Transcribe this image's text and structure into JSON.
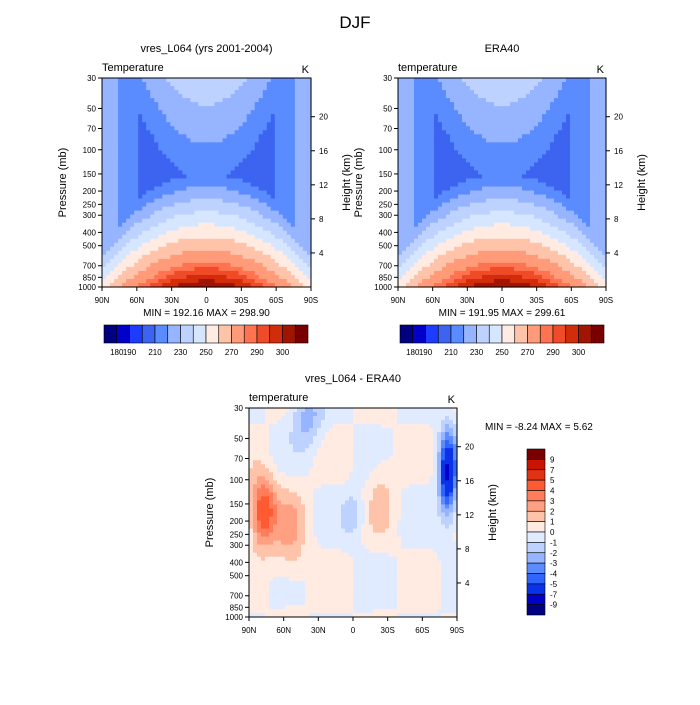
{
  "page": {
    "title": "DJF"
  },
  "chart_data": [
    {
      "type": "contour",
      "title": "vres_L064 (yrs 2001-2004)",
      "field_label": "Temperature",
      "units": "K",
      "xlabel": "",
      "ylabel": "Pressure (mb)",
      "ylabel_right": "Height (km)",
      "x_ticks": [
        "90N",
        "60N",
        "30N",
        "0",
        "30S",
        "60S",
        "90S"
      ],
      "y_ticks": [
        "30",
        "50",
        "70",
        "100",
        "150",
        "200",
        "250",
        "300",
        "400",
        "500",
        "700",
        "850",
        "1000"
      ],
      "y_ticks_values": [
        30,
        50,
        70,
        100,
        150,
        200,
        250,
        300,
        400,
        500,
        700,
        850,
        1000
      ],
      "height_ticks": [
        "4",
        "8",
        "12",
        "16",
        "20"
      ],
      "height_ticks_values": [
        4,
        8,
        12,
        16,
        20
      ],
      "min_max": "MIN = 192.16  MAX = 298.90",
      "colorbar": {
        "levels": [
          "180",
          "190",
          "210",
          "230",
          "250",
          "270",
          "290",
          "300"
        ],
        "colors": [
          "#000080",
          "#0000c8",
          "#1e3cff",
          "#3c64f0",
          "#5a8cff",
          "#96b4ff",
          "#bed2ff",
          "#d7e6ff",
          "#ffebe1",
          "#ffc3aa",
          "#ff9b78",
          "#ff7350",
          "#f04b28",
          "#d22d0a",
          "#a01400",
          "#780000"
        ]
      }
    },
    {
      "type": "contour",
      "title": "ERA40",
      "field_label": "temperature",
      "units": "K",
      "xlabel": "",
      "ylabel": "Pressure (mb)",
      "ylabel_right": "Height (km)",
      "x_ticks": [
        "90N",
        "60N",
        "30N",
        "0",
        "30S",
        "60S",
        "90S"
      ],
      "y_ticks": [
        "30",
        "50",
        "70",
        "100",
        "150",
        "200",
        "250",
        "300",
        "400",
        "500",
        "700",
        "850",
        "1000"
      ],
      "y_ticks_values": [
        30,
        50,
        70,
        100,
        150,
        200,
        250,
        300,
        400,
        500,
        700,
        850,
        1000
      ],
      "height_ticks": [
        "4",
        "8",
        "12",
        "16",
        "20"
      ],
      "height_ticks_values": [
        4,
        8,
        12,
        16,
        20
      ],
      "min_max": "MIN = 191.95  MAX = 299.61",
      "colorbar": {
        "levels": [
          "180",
          "190",
          "210",
          "230",
          "250",
          "270",
          "290",
          "300"
        ],
        "colors": [
          "#000080",
          "#0000c8",
          "#1e3cff",
          "#3c64f0",
          "#5a8cff",
          "#96b4ff",
          "#bed2ff",
          "#d7e6ff",
          "#ffebe1",
          "#ffc3aa",
          "#ff9b78",
          "#ff7350",
          "#f04b28",
          "#d22d0a",
          "#a01400",
          "#780000"
        ]
      }
    },
    {
      "type": "contour",
      "title": "vres_L064 - ERA40",
      "field_label": "temperature",
      "units": "K",
      "xlabel": "",
      "ylabel": "Pressure (mb)",
      "ylabel_right": "Height (km)",
      "x_ticks": [
        "90N",
        "60N",
        "30N",
        "0",
        "30S",
        "60S",
        "90S"
      ],
      "y_ticks": [
        "30",
        "50",
        "70",
        "100",
        "150",
        "200",
        "250",
        "300",
        "400",
        "500",
        "700",
        "850",
        "1000"
      ],
      "y_ticks_values": [
        30,
        50,
        70,
        100,
        150,
        200,
        250,
        300,
        400,
        500,
        700,
        850,
        1000
      ],
      "height_ticks": [
        "4",
        "8",
        "12",
        "16",
        "20"
      ],
      "height_ticks_values": [
        4,
        8,
        12,
        16,
        20
      ],
      "min_max": "MIN =  -8.24  MAX =   5.62",
      "colorbar": {
        "levels": [
          "9",
          "7",
          "5",
          "4",
          "3",
          "2",
          "1",
          "0",
          "-1",
          "-2",
          "-3",
          "-4",
          "-5",
          "-7",
          "-9"
        ],
        "colors": [
          "#780000",
          "#c81400",
          "#e13214",
          "#ff5a32",
          "#ff7d5a",
          "#ffa082",
          "#ffc3aa",
          "#ffebe1",
          "#e1ebff",
          "#bed2ff",
          "#96b4ff",
          "#5a8cff",
          "#3264ff",
          "#0a32e6",
          "#0000c8",
          "#000080"
        ]
      }
    }
  ]
}
